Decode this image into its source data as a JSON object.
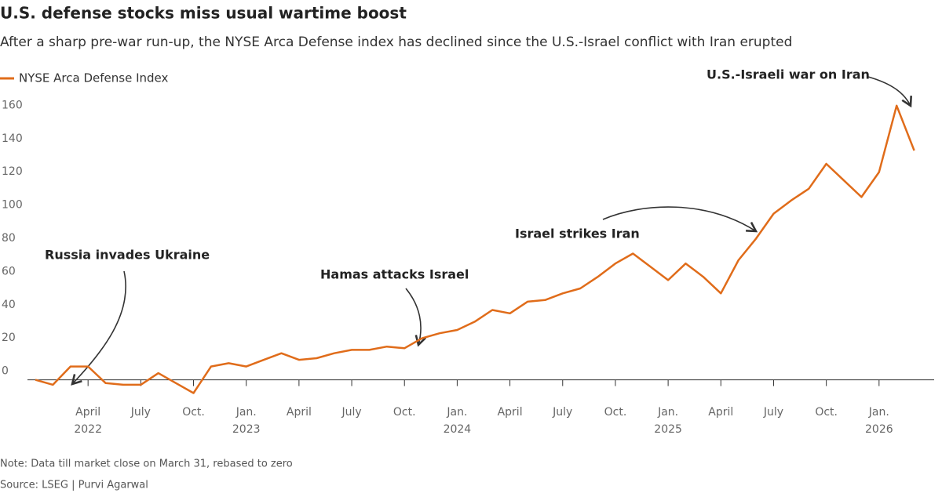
{
  "chart_data": {
    "type": "line",
    "title": "U.S. defense stocks miss usual wartime boost",
    "subtitle": "After a sharp pre-war run-up, the NYSE Arca Defense index has declined since the U.S.-Israel conflict with Iran erupted",
    "x": [
      "2022-01",
      "2022-02",
      "2022-03",
      "2022-04",
      "2022-05",
      "2022-06",
      "2022-07",
      "2022-08",
      "2022-09",
      "2022-10",
      "2022-11",
      "2022-12",
      "2023-01",
      "2023-02",
      "2023-03",
      "2023-04",
      "2023-05",
      "2023-06",
      "2023-07",
      "2023-08",
      "2023-09",
      "2023-10",
      "2023-11",
      "2023-12",
      "2024-01",
      "2024-02",
      "2024-03",
      "2024-04",
      "2024-05",
      "2024-06",
      "2024-07",
      "2024-08",
      "2024-09",
      "2024-10",
      "2024-11",
      "2024-12",
      "2025-01",
      "2025-02",
      "2025-03",
      "2025-04",
      "2025-05",
      "2025-06",
      "2025-07",
      "2025-08",
      "2025-09",
      "2025-10",
      "2025-11",
      "2025-12",
      "2026-01",
      "2026-02",
      "2026-03"
    ],
    "series": [
      {
        "name": "NYSE Arca Defense Index",
        "color": "#e06c1a",
        "values": [
          0,
          -3,
          8,
          8,
          -2,
          -3,
          -3,
          4,
          -2,
          -8,
          8,
          10,
          8,
          12,
          16,
          12,
          13,
          16,
          18,
          18,
          20,
          19,
          25,
          28,
          30,
          35,
          42,
          40,
          47,
          48,
          52,
          55,
          62,
          70,
          76,
          68,
          60,
          70,
          62,
          52,
          72,
          85,
          100,
          108,
          115,
          130,
          120,
          110,
          125,
          165,
          138
        ]
      }
    ],
    "xlim": [
      "2022-01",
      "2026-04"
    ],
    "xticks": [
      {
        "value": "2022-04",
        "label": "April",
        "sublabel": "2022"
      },
      {
        "value": "2022-07",
        "label": "July"
      },
      {
        "value": "2022-10",
        "label": "Oct."
      },
      {
        "value": "2023-01",
        "label": "Jan.",
        "sublabel": "2023"
      },
      {
        "value": "2023-04",
        "label": "April"
      },
      {
        "value": "2023-07",
        "label": "July"
      },
      {
        "value": "2023-10",
        "label": "Oct."
      },
      {
        "value": "2024-01",
        "label": "Jan.",
        "sublabel": "2024"
      },
      {
        "value": "2024-04",
        "label": "April"
      },
      {
        "value": "2024-07",
        "label": "July"
      },
      {
        "value": "2024-10",
        "label": "Oct."
      },
      {
        "value": "2025-01",
        "label": "Jan.",
        "sublabel": "2025"
      },
      {
        "value": "2025-04",
        "label": "April"
      },
      {
        "value": "2025-07",
        "label": "July"
      },
      {
        "value": "2025-10",
        "label": "Oct."
      },
      {
        "value": "2026-01",
        "label": "Jan.",
        "sublabel": "2026"
      }
    ],
    "ylim": [
      -12,
      172
    ],
    "yticks": [
      0,
      20,
      40,
      60,
      80,
      100,
      120,
      140,
      160
    ],
    "annotations": [
      "Russia invades Ukraine",
      "Hamas attacks Israel",
      "Israel strikes Iran",
      "U.S.-Israeli war on Iran"
    ],
    "note": "Note: Data till market close on March 31, rebased to zero",
    "source": "Source: LSEG | Purvi Agarwal"
  }
}
